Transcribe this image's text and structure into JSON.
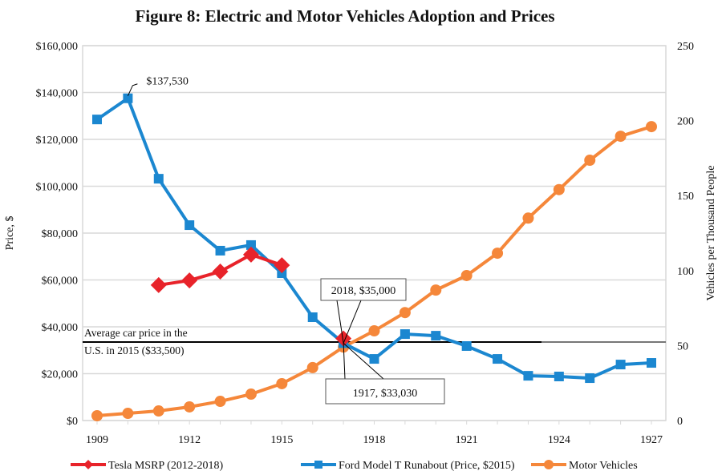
{
  "chart_data": {
    "type": "line",
    "title": "Figure 8: Electric and Motor Vehicles Adoption and Prices",
    "xlabel": "",
    "ylabel": "Price, $",
    "y2label": "Vehicles per Thousand People",
    "x": [
      1909,
      1910,
      1911,
      1912,
      1913,
      1914,
      1915,
      1916,
      1917,
      1918,
      1919,
      1920,
      1921,
      1922,
      1923,
      1924,
      1925,
      1926,
      1927
    ],
    "xticks": [
      "1909",
      "1912",
      "1915",
      "1918",
      "1921",
      "1924",
      "1927"
    ],
    "ylim": [
      0,
      160000
    ],
    "yticks": [
      "$0",
      "$20,000",
      "$40,000",
      "$60,000",
      "$80,000",
      "$100,000",
      "$120,000",
      "$140,000",
      "$160,000"
    ],
    "y2lim": [
      0,
      250
    ],
    "y2ticks": [
      "0",
      "50",
      "100",
      "150",
      "200",
      "250"
    ],
    "grid": true,
    "legend": "bottom",
    "series": [
      {
        "name": "Tesla MSRP (2012-2018)",
        "axis": "left",
        "color": "#e8232a",
        "marker": "diamond",
        "values": [
          null,
          null,
          57800,
          59800,
          63600,
          70800,
          66300,
          null,
          35000,
          null,
          null,
          null,
          null,
          null,
          null,
          null,
          null,
          null,
          null
        ]
      },
      {
        "name": "Ford Model T Runabout (Price, $2015)",
        "axis": "left",
        "color": "#1b87d0",
        "marker": "square",
        "values": [
          128500,
          137530,
          103200,
          83400,
          72500,
          74900,
          62900,
          44100,
          33030,
          26300,
          36900,
          36200,
          31800,
          26300,
          19100,
          18800,
          18100,
          23900,
          24600
        ]
      },
      {
        "name": "Motor Vehicles",
        "axis": "right",
        "color": "#f5873a",
        "marker": "circle",
        "values": [
          3.2,
          4.8,
          6.4,
          9.1,
          12.8,
          17.6,
          24.6,
          35.3,
          49,
          59.8,
          72,
          87,
          96.7,
          111.6,
          135,
          154,
          173.6,
          189.6,
          196
        ]
      }
    ],
    "reference_line": {
      "value": 33500,
      "label_line1": "Average car price in the",
      "label_line2": "U.S. in 2015 ($33,500)"
    },
    "annotations": {
      "peak": "$137,530",
      "tesla_2018": "2018, $35,000",
      "ford_1917": "1917, $33,030"
    }
  }
}
